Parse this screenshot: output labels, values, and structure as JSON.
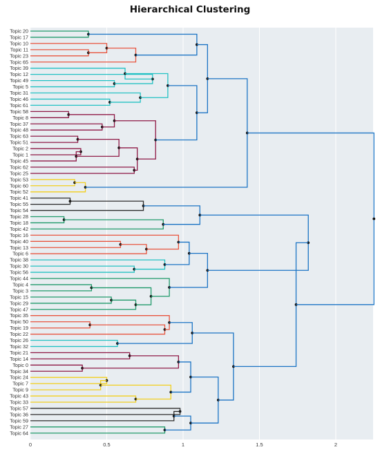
{
  "chart_data": {
    "type": "dendrogram",
    "title": "Hierarchical Clustering",
    "xlim": [
      0,
      2.25
    ],
    "xticks": [
      0,
      0.5,
      1,
      1.5,
      2
    ],
    "xtick_labels": [
      "0",
      "0.5",
      "1",
      "1.5",
      "2"
    ],
    "grid": true,
    "leaves": [
      "Topic 20",
      "Topic 17",
      "Topic 10",
      "Topic 11",
      "Topic 23",
      "Topic 65",
      "Topic 39",
      "Topic 12",
      "Topic 49",
      "Topic 5",
      "Topic 31",
      "Topic 46",
      "Topic 61",
      "Topic 58",
      "Topic 8",
      "Topic 37",
      "Topic 48",
      "Topic 63",
      "Topic 51",
      "Topic 2",
      "Topic 1",
      "Topic 45",
      "Topic 62",
      "Topic 25",
      "Topic 53",
      "Topic 60",
      "Topic 52",
      "Topic 41",
      "Topic 55",
      "Topic 54",
      "Topic 28",
      "Topic 18",
      "Topic 42",
      "Topic 16",
      "Topic 40",
      "Topic 13",
      "Topic 6",
      "Topic 38",
      "Topic 30",
      "Topic 56",
      "Topic 44",
      "Topic 4",
      "Topic 3",
      "Topic 15",
      "Topic 29",
      "Topic 47",
      "Topic 35",
      "Topic 50",
      "Topic 19",
      "Topic 22",
      "Topic 26",
      "Topic 32",
      "Topic 21",
      "Topic 14",
      "Topic 0",
      "Topic 34",
      "Topic 24",
      "Topic 7",
      "Topic 9",
      "Topic 43",
      "Topic 33",
      "Topic 57",
      "Topic 36",
      "Topic 59",
      "Topic 27",
      "Topic 64"
    ],
    "colors": {
      "green": "#1f9a6a",
      "red": "#e8553f",
      "cyan": "#22c1c3",
      "maroon": "#8e1845",
      "yellow": "#f2cf1d",
      "black": "#2b2b2b",
      "blue": "#1a73c4"
    },
    "merges": [
      {
        "a": 0,
        "b": 1,
        "h": 0.38,
        "c": "green"
      },
      {
        "a": 3,
        "b": 4,
        "h": 0.38,
        "c": "red"
      },
      {
        "a": 2,
        "b": "m1",
        "h": 0.5,
        "c": "red"
      },
      {
        "a": "m2",
        "b": 5,
        "h": 0.69,
        "c": "red"
      },
      {
        "a": "m0",
        "b": "m3",
        "h": 1.09,
        "c": "blue"
      },
      {
        "a": 8,
        "b": 9,
        "h": 0.55,
        "c": "cyan"
      },
      {
        "a": 7,
        "b": "m5",
        "h": 0.8,
        "c": "cyan"
      },
      {
        "a": 6,
        "b": "m6",
        "h": 0.62,
        "c": "cyan"
      },
      {
        "a": 11,
        "b": 12,
        "h": 0.52,
        "c": "cyan"
      },
      {
        "a": 10,
        "b": "m8",
        "h": 0.72,
        "c": "cyan"
      },
      {
        "a": "m7",
        "b": "m9",
        "h": 0.9,
        "c": "cyan"
      },
      {
        "a": 13,
        "b": 14,
        "h": 0.25,
        "c": "maroon"
      },
      {
        "a": 15,
        "b": 16,
        "h": 0.47,
        "c": "maroon"
      },
      {
        "a": "m11",
        "b": "m12",
        "h": 0.55,
        "c": "maroon"
      },
      {
        "a": 19,
        "b": 20,
        "h": 0.33,
        "c": "maroon"
      },
      {
        "a": "m14",
        "b": 21,
        "h": 0.3,
        "c": "maroon"
      },
      {
        "a": 17,
        "b": 18,
        "h": 0.31,
        "c": "maroon"
      },
      {
        "a": "m16",
        "b": "m15",
        "h": 0.58,
        "c": "maroon"
      },
      {
        "a": 22,
        "b": 23,
        "h": 0.68,
        "c": "maroon"
      },
      {
        "a": "m17",
        "b": "m18",
        "h": 0.7,
        "c": "maroon"
      },
      {
        "a": "m13",
        "b": "m19",
        "h": 0.82,
        "c": "maroon"
      },
      {
        "a": "m10",
        "b": "m20",
        "h": 1.09,
        "c": "blue"
      },
      {
        "a": "m4",
        "b": "m21",
        "h": 1.16,
        "c": "blue"
      },
      {
        "a": 24,
        "b": 25,
        "h": 0.29,
        "c": "yellow"
      },
      {
        "a": "m23",
        "b": 26,
        "h": 0.36,
        "c": "yellow"
      },
      {
        "a": "m22",
        "b": "m24",
        "h": 1.42,
        "c": "blue"
      },
      {
        "a": 27,
        "b": 28,
        "h": 0.26,
        "c": "black"
      },
      {
        "a": "m26",
        "b": 29,
        "h": 0.74,
        "c": "black"
      },
      {
        "a": 30,
        "b": 31,
        "h": 0.22,
        "c": "green"
      },
      {
        "a": "m28",
        "b": 32,
        "h": 0.87,
        "c": "green"
      },
      {
        "a": "m27",
        "b": "m29",
        "h": 1.11,
        "c": "blue"
      },
      {
        "a": 34,
        "b": 35,
        "h": 0.59,
        "c": "red"
      },
      {
        "a": "m31",
        "b": 36,
        "h": 0.76,
        "c": "red"
      },
      {
        "a": 33,
        "b": "m32",
        "h": 0.97,
        "c": "red"
      },
      {
        "a": 38,
        "b": 39,
        "h": 0.68,
        "c": "cyan"
      },
      {
        "a": 37,
        "b": "m34",
        "h": 0.88,
        "c": "cyan"
      },
      {
        "a": "m33",
        "b": "m35",
        "h": 1.04,
        "c": "blue"
      },
      {
        "a": 41,
        "b": 42,
        "h": 0.4,
        "c": "green"
      },
      {
        "a": 43,
        "b": 44,
        "h": 0.53,
        "c": "green"
      },
      {
        "a": "m38",
        "b": 45,
        "h": 0.69,
        "c": "green"
      },
      {
        "a": "m37",
        "b": "m39",
        "h": 0.79,
        "c": "green"
      },
      {
        "a": 40,
        "b": "m40",
        "h": 0.91,
        "c": "green"
      },
      {
        "a": "m36",
        "b": "m41",
        "h": 1.16,
        "c": "blue"
      },
      {
        "a": "m30",
        "b": "m42",
        "h": 1.82,
        "c": "blue"
      },
      {
        "a": 47,
        "b": 48,
        "h": 0.39,
        "c": "red"
      },
      {
        "a": "m44",
        "b": 49,
        "h": 0.88,
        "c": "red"
      },
      {
        "a": 46,
        "b": "m45",
        "h": 0.91,
        "c": "red"
      },
      {
        "a": 50,
        "b": 51,
        "h": 0.57,
        "c": "cyan"
      },
      {
        "a": "m46",
        "b": "m47",
        "h": 1.06,
        "c": "blue"
      },
      {
        "a": 52,
        "b": 53,
        "h": 0.65,
        "c": "maroon"
      },
      {
        "a": 54,
        "b": 55,
        "h": 0.34,
        "c": "maroon"
      },
      {
        "a": "m49",
        "b": "m50",
        "h": 0.97,
        "c": "maroon"
      },
      {
        "a": 56,
        "b": 57,
        "h": 0.5,
        "c": "yellow"
      },
      {
        "a": "m52",
        "b": 58,
        "h": 0.46,
        "c": "yellow"
      },
      {
        "a": 59,
        "b": 60,
        "h": 0.69,
        "c": "yellow"
      },
      {
        "a": "m53",
        "b": "m54",
        "h": 0.92,
        "c": "yellow"
      },
      {
        "a": "m51",
        "b": "m55",
        "h": 1.05,
        "c": "blue"
      },
      {
        "a": 61,
        "b": 62,
        "h": 0.98,
        "c": "black"
      },
      {
        "a": "m57",
        "b": 63,
        "h": 0.94,
        "c": "black"
      },
      {
        "a": 64,
        "b": 65,
        "h": 0.88,
        "c": "green"
      },
      {
        "a": "m58",
        "b": "m59",
        "h": 1.05,
        "c": "blue"
      },
      {
        "a": "m56",
        "b": "m60",
        "h": 1.23,
        "c": "blue"
      },
      {
        "a": "m48",
        "b": "m61",
        "h": 1.33,
        "c": "blue"
      },
      {
        "a": "m43",
        "b": "m62",
        "h": 1.74,
        "c": "blue"
      },
      {
        "a": "m25",
        "b": "m63",
        "h": 2.25,
        "c": "blue"
      }
    ]
  }
}
